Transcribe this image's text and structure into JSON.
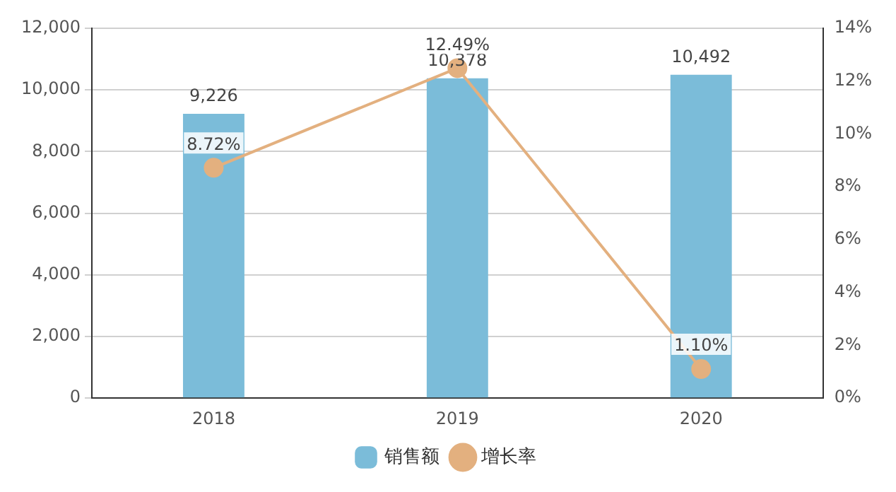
{
  "chart_data": {
    "type": "bar",
    "categories": [
      "2018",
      "2019",
      "2020"
    ],
    "series": [
      {
        "name": "销售额",
        "color": "#7bbcd9",
        "values": [
          9226,
          10378,
          10492
        ],
        "value_labels": [
          "9,226",
          "10,378",
          "10,492"
        ]
      },
      {
        "name": "增长率",
        "type": "line",
        "axis": "y2",
        "color": "#e3b07f",
        "values": [
          8.72,
          12.49,
          1.1
        ],
        "value_labels": [
          "8.72%",
          "12.49%",
          "1.10%"
        ]
      }
    ],
    "ylim": [
      0,
      12000
    ],
    "yticks": [
      0,
      {
        "value": 2000,
        "label": "2,000"
      },
      {
        "value": 4000,
        "label": "4,000"
      },
      {
        "value": 6000,
        "label": "6,000"
      },
      {
        "value": 8000,
        "label": "8,000"
      },
      {
        "value": 10000,
        "label": "10,000"
      },
      {
        "value": 12000,
        "label": "12,000"
      }
    ],
    "y2lim": [
      0,
      14
    ],
    "y2ticks": [
      {
        "value": 0,
        "label": "0%"
      },
      {
        "value": 2,
        "label": "2%"
      },
      {
        "value": 4,
        "label": "4%"
      },
      {
        "value": 6,
        "label": "6%"
      },
      {
        "value": 8,
        "label": "8%"
      },
      {
        "value": 10,
        "label": "10%"
      },
      {
        "value": 12,
        "label": "12%"
      },
      {
        "value": 14,
        "label": "14%"
      }
    ],
    "grid": "y",
    "legend": "bottom",
    "marker": "circle",
    "line_style": "solid"
  }
}
